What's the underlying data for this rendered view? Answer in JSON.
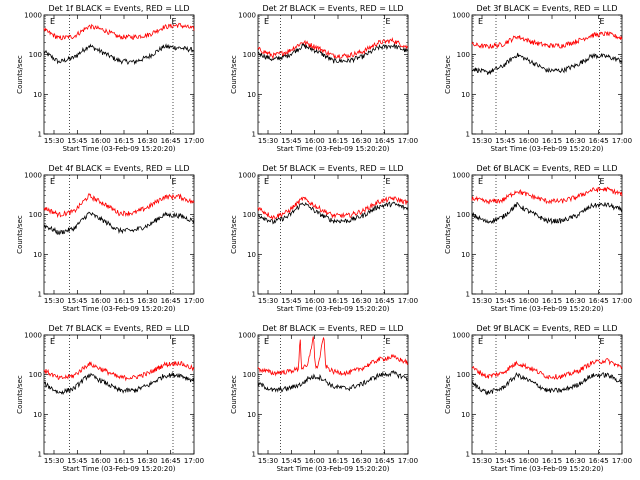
{
  "chart_data": [
    {
      "type": "line",
      "title": "Det 1f BLACK = Events, RED = LLD",
      "flag": "E",
      "xlabel": "Start Time (03-Feb-09 15:20:20)",
      "ylabel": "Counts/sec",
      "xticks": [
        "15:30",
        "15:45",
        "16:00",
        "16:15",
        "16:30",
        "16:45",
        "17:00"
      ],
      "yticks": [
        "1",
        "10",
        "100",
        "1000"
      ],
      "yscale": "log",
      "ylim": [
        1,
        1000
      ],
      "xlim": [
        0,
        100
      ],
      "markers_x": [
        17,
        86
      ],
      "series": [
        {
          "color": "#000000",
          "x": [
            0,
            10,
            20,
            30,
            40,
            50,
            60,
            70,
            80,
            90,
            100
          ],
          "values": [
            120,
            65,
            85,
            170,
            110,
            70,
            65,
            90,
            160,
            150,
            130
          ]
        },
        {
          "color": "#ff0000",
          "x": [
            0,
            10,
            20,
            30,
            40,
            50,
            60,
            70,
            80,
            90,
            100
          ],
          "values": [
            420,
            260,
            290,
            520,
            420,
            280,
            280,
            320,
            500,
            560,
            450
          ]
        }
      ]
    },
    {
      "type": "line",
      "title": "Det 2f BLACK = Events, RED = LLD",
      "flag": "E",
      "xlabel": "Start Time (03-Feb-09 15:20:20)",
      "ylabel": "Counts/sec",
      "xticks": [
        "15:30",
        "15:45",
        "16:00",
        "16:15",
        "16:30",
        "16:45",
        "17:00"
      ],
      "yticks": [
        "1",
        "10",
        "100",
        "1000"
      ],
      "yscale": "log",
      "ylim": [
        1,
        1000
      ],
      "xlim": [
        0,
        100
      ],
      "markers_x": [
        15,
        84
      ],
      "series": [
        {
          "color": "#000000",
          "x": [
            0,
            10,
            20,
            30,
            40,
            50,
            60,
            70,
            80,
            90,
            100
          ],
          "values": [
            110,
            75,
            95,
            170,
            120,
            70,
            70,
            90,
            150,
            170,
            120
          ]
        },
        {
          "color": "#ff0000",
          "x": [
            0,
            10,
            20,
            30,
            40,
            50,
            60,
            70,
            80,
            90,
            100
          ],
          "values": [
            140,
            95,
            120,
            210,
            150,
            95,
            95,
            120,
            200,
            230,
            150
          ]
        }
      ]
    },
    {
      "type": "line",
      "title": "Det 3f BLACK = Events, RED = LLD",
      "flag": "E",
      "xlabel": "Start Time (03-Feb-09 15:20:20)",
      "ylabel": "Counts/sec",
      "xticks": [
        "15:30",
        "15:45",
        "16:00",
        "16:15",
        "16:30",
        "16:45",
        "17:00"
      ],
      "yticks": [
        "1",
        "10",
        "100",
        "1000"
      ],
      "yscale": "log",
      "ylim": [
        1,
        1000
      ],
      "xlim": [
        0,
        100
      ],
      "markers_x": [
        16,
        85
      ],
      "series": [
        {
          "color": "#000000",
          "x": [
            0,
            10,
            20,
            30,
            40,
            50,
            60,
            70,
            80,
            90,
            100
          ],
          "values": [
            45,
            35,
            50,
            100,
            65,
            40,
            40,
            55,
            95,
            90,
            70
          ]
        },
        {
          "color": "#ff0000",
          "x": [
            0,
            10,
            20,
            30,
            40,
            50,
            60,
            70,
            80,
            90,
            100
          ],
          "values": [
            180,
            160,
            180,
            290,
            210,
            170,
            170,
            220,
            310,
            340,
            260
          ]
        }
      ]
    },
    {
      "type": "line",
      "title": "Det 4f BLACK = Events, RED = LLD",
      "flag": "E",
      "xlabel": "Start Time (03-Feb-09 15:20:20)",
      "ylabel": "Counts/sec",
      "xticks": [
        "15:30",
        "15:45",
        "16:00",
        "16:15",
        "16:30",
        "16:45",
        "17:00"
      ],
      "yticks": [
        "1",
        "10",
        "100",
        "1000"
      ],
      "yscale": "log",
      "ylim": [
        1,
        1000
      ],
      "xlim": [
        0,
        100
      ],
      "markers_x": [
        17,
        86
      ],
      "series": [
        {
          "color": "#000000",
          "x": [
            0,
            10,
            20,
            30,
            40,
            50,
            60,
            70,
            80,
            90,
            100
          ],
          "values": [
            55,
            35,
            45,
            110,
            70,
            40,
            40,
            55,
            100,
            95,
            70
          ]
        },
        {
          "color": "#ff0000",
          "x": [
            0,
            10,
            20,
            30,
            40,
            50,
            60,
            70,
            80,
            90,
            100
          ],
          "values": [
            150,
            100,
            120,
            300,
            190,
            110,
            110,
            160,
            280,
            290,
            200
          ]
        }
      ]
    },
    {
      "type": "line",
      "title": "Det 5f BLACK = Events, RED = LLD",
      "flag": "E",
      "xlabel": "Start Time (03-Feb-09 15:20:20)",
      "ylabel": "Counts/sec",
      "xticks": [
        "15:30",
        "15:45",
        "16:00",
        "16:15",
        "16:30",
        "16:45",
        "17:00"
      ],
      "yticks": [
        "1",
        "10",
        "100",
        "1000"
      ],
      "yscale": "log",
      "ylim": [
        1,
        1000
      ],
      "xlim": [
        0,
        100
      ],
      "markers_x": [
        15,
        84
      ],
      "series": [
        {
          "color": "#000000",
          "x": [
            0,
            10,
            20,
            30,
            40,
            50,
            60,
            70,
            80,
            90,
            100
          ],
          "values": [
            100,
            65,
            90,
            200,
            110,
            70,
            70,
            95,
            160,
            190,
            140
          ]
        },
        {
          "color": "#ff0000",
          "x": [
            0,
            10,
            20,
            30,
            40,
            50,
            60,
            70,
            80,
            90,
            100
          ],
          "values": [
            150,
            85,
            120,
            260,
            150,
            95,
            95,
            125,
            210,
            260,
            200
          ]
        }
      ]
    },
    {
      "type": "line",
      "title": "Det 6f BLACK = Events, RED = LLD",
      "flag": "E",
      "xlabel": "Start Time (03-Feb-09 15:20:20)",
      "ylabel": "Counts/sec",
      "xticks": [
        "15:30",
        "15:45",
        "16:00",
        "16:15",
        "16:30",
        "16:45",
        "17:00"
      ],
      "yticks": [
        "1",
        "10",
        "100",
        "1000"
      ],
      "yscale": "log",
      "ylim": [
        1,
        1000
      ],
      "xlim": [
        0,
        100
      ],
      "markers_x": [
        16,
        85
      ],
      "series": [
        {
          "color": "#000000",
          "x": [
            0,
            10,
            20,
            30,
            40,
            50,
            60,
            70,
            80,
            90,
            100
          ],
          "values": [
            100,
            65,
            85,
            180,
            110,
            70,
            70,
            95,
            170,
            180,
            130
          ]
        },
        {
          "color": "#ff0000",
          "x": [
            0,
            10,
            20,
            30,
            40,
            50,
            60,
            70,
            80,
            90,
            100
          ],
          "values": [
            260,
            210,
            230,
            400,
            290,
            220,
            220,
            280,
            420,
            440,
            330
          ]
        }
      ]
    },
    {
      "type": "line",
      "title": "Det 7f BLACK = Events, RED = LLD",
      "flag": "E",
      "xlabel": "Start Time (03-Feb-09 15:20:20)",
      "ylabel": "Counts/sec",
      "xticks": [
        "15:30",
        "15:45",
        "16:00",
        "16:15",
        "16:30",
        "16:45",
        "17:00"
      ],
      "yticks": [
        "1",
        "10",
        "100",
        "1000"
      ],
      "yscale": "log",
      "ylim": [
        1,
        1000
      ],
      "xlim": [
        0,
        100
      ],
      "markers_x": [
        17,
        86
      ],
      "series": [
        {
          "color": "#000000",
          "x": [
            0,
            10,
            20,
            30,
            40,
            50,
            60,
            70,
            80,
            90,
            100
          ],
          "values": [
            60,
            35,
            45,
            100,
            65,
            40,
            40,
            55,
            95,
            100,
            70
          ]
        },
        {
          "color": "#ff0000",
          "x": [
            0,
            10,
            20,
            30,
            40,
            50,
            60,
            70,
            80,
            90,
            100
          ],
          "values": [
            130,
            80,
            95,
            190,
            130,
            85,
            85,
            110,
            180,
            200,
            140
          ]
        }
      ]
    },
    {
      "type": "line",
      "title": "Det 8f BLACK = Events, RED = LLD",
      "flag": "E",
      "xlabel": "Start Time (03-Feb-09 15:20:20)",
      "ylabel": "Counts/sec",
      "xticks": [
        "15:30",
        "15:45",
        "16:00",
        "16:15",
        "16:30",
        "16:45",
        "17:00"
      ],
      "yticks": [
        "1",
        "10",
        "100",
        "1000"
      ],
      "yscale": "log",
      "ylim": [
        1,
        1000
      ],
      "xlim": [
        0,
        100
      ],
      "markers_x": [
        15,
        84
      ],
      "series": [
        {
          "color": "#000000",
          "x": [
            0,
            10,
            20,
            30,
            33,
            38,
            42,
            50,
            60,
            70,
            80,
            90,
            100
          ],
          "values": [
            60,
            40,
            45,
            60,
            80,
            90,
            85,
            50,
            45,
            60,
            95,
            110,
            80
          ]
        },
        {
          "color": "#ff0000",
          "x": [
            0,
            10,
            20,
            27,
            28,
            29,
            33,
            37,
            38,
            40,
            44,
            45,
            50,
            60,
            70,
            80,
            90,
            100
          ],
          "values": [
            140,
            110,
            120,
            140,
            1000,
            150,
            160,
            1000,
            170,
            160,
            1000,
            165,
            120,
            110,
            150,
            240,
            280,
            200
          ]
        }
      ]
    },
    {
      "type": "line",
      "title": "Det 9f BLACK = Events, RED = LLD",
      "flag": "E",
      "xlabel": "Start Time (03-Feb-09 15:20:20)",
      "ylabel": "Counts/sec",
      "xticks": [
        "15:30",
        "15:45",
        "16:00",
        "16:15",
        "16:30",
        "16:45",
        "17:00"
      ],
      "yticks": [
        "1",
        "10",
        "100",
        "1000"
      ],
      "yscale": "log",
      "ylim": [
        1,
        1000
      ],
      "xlim": [
        0,
        100
      ],
      "markers_x": [
        16,
        85
      ],
      "series": [
        {
          "color": "#000000",
          "x": [
            0,
            10,
            20,
            30,
            40,
            50,
            60,
            70,
            80,
            90,
            100
          ],
          "values": [
            60,
            35,
            45,
            100,
            65,
            40,
            40,
            55,
            95,
            100,
            65
          ]
        },
        {
          "color": "#ff0000",
          "x": [
            0,
            10,
            20,
            30,
            40,
            50,
            60,
            70,
            80,
            90,
            100
          ],
          "values": [
            150,
            90,
            110,
            200,
            140,
            90,
            90,
            120,
            200,
            230,
            150
          ]
        }
      ]
    }
  ]
}
